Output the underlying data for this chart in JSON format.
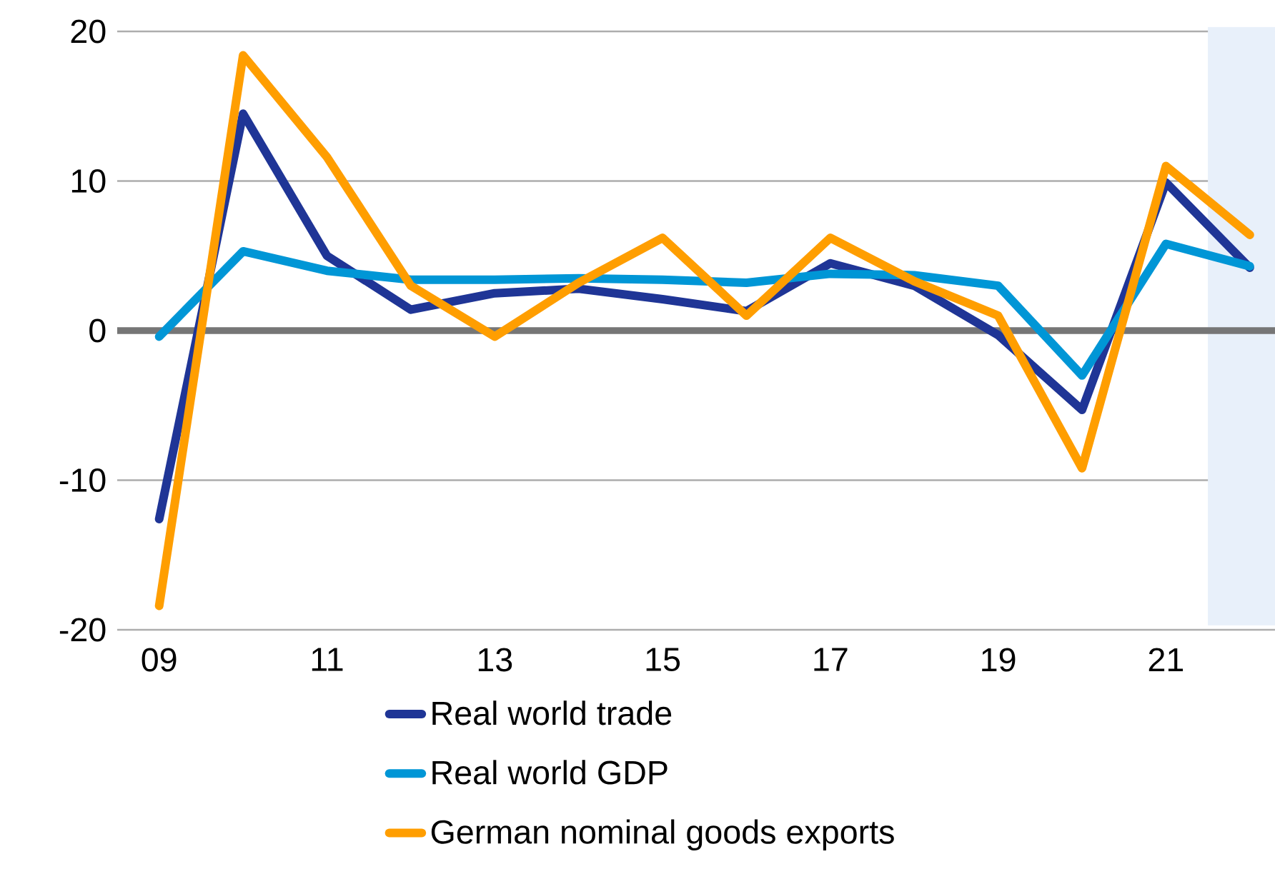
{
  "chart_data": {
    "type": "line",
    "x": [
      2009,
      2010,
      2011,
      2012,
      2013,
      2014,
      2015,
      2016,
      2017,
      2018,
      2019,
      2020,
      2021,
      2022
    ],
    "series": [
      {
        "name": "Real world trade",
        "color": "#1f3596",
        "values": [
          -12.6,
          14.5,
          5.0,
          1.4,
          2.5,
          2.8,
          2.1,
          1.3,
          4.5,
          3.0,
          -0.3,
          -5.3,
          9.9,
          4.2
        ]
      },
      {
        "name": "Real world GDP",
        "color": "#0096d6",
        "values": [
          -0.4,
          5.3,
          4.0,
          3.4,
          3.4,
          3.5,
          3.4,
          3.2,
          3.8,
          3.7,
          3.0,
          -3.0,
          5.8,
          4.3
        ]
      },
      {
        "name": "German nominal goods exports",
        "color": "#ff9e00",
        "values": [
          -18.4,
          18.4,
          11.6,
          3.0,
          -0.4,
          3.2,
          6.2,
          1.0,
          6.2,
          3.3,
          1.0,
          -9.2,
          11.0,
          6.4
        ]
      }
    ],
    "xlim": [
      2008.5,
      2022.3
    ],
    "xticks": [
      {
        "value": 2009,
        "label": "09"
      },
      {
        "value": 2011,
        "label": "11"
      },
      {
        "value": 2013,
        "label": "13"
      },
      {
        "value": 2015,
        "label": "15"
      },
      {
        "value": 2017,
        "label": "17"
      },
      {
        "value": 2019,
        "label": "19"
      },
      {
        "value": 2021,
        "label": "21"
      }
    ],
    "ylim": [
      -20,
      20
    ],
    "yticks": [
      -20,
      -10,
      0,
      10,
      20
    ],
    "ref_lines": [
      {
        "axis": "y",
        "value": 0,
        "color": "#767676"
      }
    ],
    "bands": [
      {
        "axis": "x",
        "from": 2021.5,
        "to": 2022.3,
        "color": "#e8f0fa"
      }
    ],
    "grid": "y",
    "legend": "bottom",
    "line_style": "solid"
  }
}
